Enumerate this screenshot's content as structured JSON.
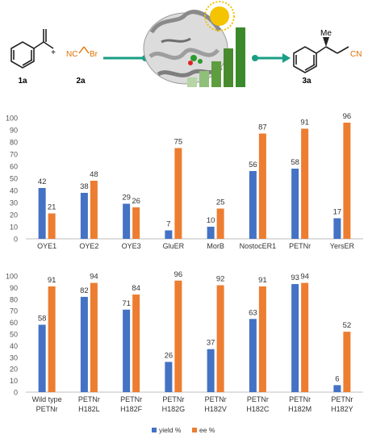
{
  "scheme": {
    "reactant1_label": "1a",
    "plus": "+",
    "reactant2_label": "2a",
    "reactant2_formula_nc": "NC",
    "reactant2_formula_br": "Br",
    "product_label": "3a",
    "product_me": "Me",
    "product_cn": "CN",
    "colors": {
      "arrow": "#1a9e86",
      "bars_dark": "#3a8a2c",
      "bars_light": "#8fbf78",
      "sun": "#f2c200"
    }
  },
  "chart_data": [
    {
      "type": "bar",
      "categories": [
        "OYE1",
        "OYE2",
        "OYE3",
        "GluER",
        "MorB",
        "NostocER1",
        "PETNr",
        "YersER"
      ],
      "series": [
        {
          "name": "yield %",
          "values": [
            42,
            38,
            29,
            7,
            10,
            56,
            58,
            17
          ],
          "color": "#4472c4"
        },
        {
          "name": "ee %",
          "values": [
            21,
            48,
            26,
            75,
            25,
            87,
            91,
            96
          ],
          "color": "#ed7d31"
        }
      ],
      "ylim": [
        0,
        100
      ],
      "yticks": [
        0,
        10,
        20,
        30,
        40,
        50,
        60,
        70,
        80,
        90,
        100
      ],
      "grid": false
    },
    {
      "type": "bar",
      "categories": [
        [
          "Wild type",
          "PETNr"
        ],
        [
          "PETNr",
          "H182L"
        ],
        [
          "PETNr",
          "H182F"
        ],
        [
          "PETNr",
          "H182G"
        ],
        [
          "PETNr",
          "H182V"
        ],
        [
          "PETNr",
          "H182C"
        ],
        [
          "PETNr",
          "H182M"
        ],
        [
          "PETNr",
          "H182Y"
        ]
      ],
      "series": [
        {
          "name": "yield %",
          "values": [
            58,
            82,
            71,
            26,
            37,
            63,
            93,
            6
          ],
          "color": "#4472c4"
        },
        {
          "name": "ee %",
          "values": [
            91,
            94,
            84,
            96,
            92,
            91,
            94,
            52
          ],
          "color": "#ed7d31"
        }
      ],
      "ylim": [
        0,
        100
      ],
      "yticks": [
        0,
        10,
        20,
        30,
        40,
        50,
        60,
        70,
        80,
        90,
        100
      ],
      "grid": false
    }
  ],
  "legend": {
    "position": "bottom",
    "items": [
      "yield %",
      "ee %"
    ]
  }
}
